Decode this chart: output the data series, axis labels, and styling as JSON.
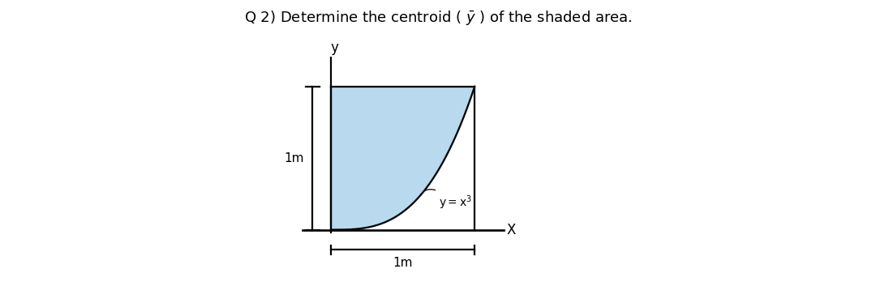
{
  "background_color": "#ffffff",
  "shade_color": "#b8d9ee",
  "shade_alpha": 1.0,
  "axis_label_x": "X",
  "axis_label_y": "y",
  "dim_label_h": "1m",
  "dim_label_v": "1m",
  "curve_label": "y=x",
  "curve_exp": "3",
  "fig_width": 10.8,
  "fig_height": 3.74,
  "lw": 1.6
}
